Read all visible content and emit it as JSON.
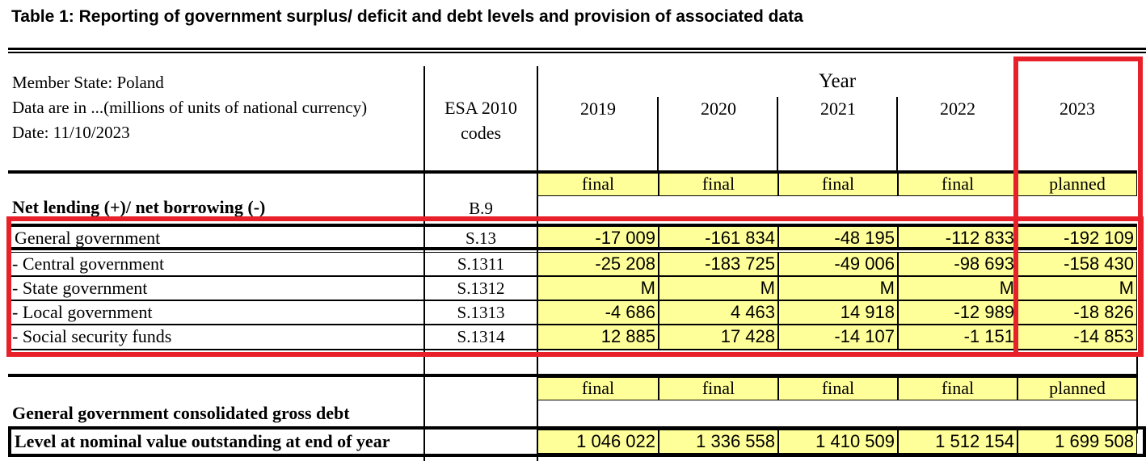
{
  "title": "Table 1: Reporting of government surplus/ deficit and debt levels and provision of associated data",
  "header": {
    "member_state": "Member State: Poland",
    "units": "Data are in ...(millions of units of national currency)",
    "date": "Date: 11/10/2023",
    "codes_line1": "ESA 2010",
    "codes_line2": "codes",
    "year_label": "Year",
    "years": [
      "2019",
      "2020",
      "2021",
      "2022",
      "2023"
    ]
  },
  "status": [
    "final",
    "final",
    "final",
    "final",
    "planned"
  ],
  "net_lending": {
    "label": "Net lending (+)/ net borrowing (-)",
    "code": "B.9",
    "rows": [
      {
        "label": "General government",
        "code": "S.13",
        "values": [
          "-17 009",
          "-161 834",
          "-48 195",
          "-112 833",
          "-192 109"
        ]
      },
      {
        "label": " - Central government",
        "code": "S.1311",
        "values": [
          "-25 208",
          "-183 725",
          "-49 006",
          "-98 693",
          "-158 430"
        ]
      },
      {
        "label": " - State government",
        "code": "S.1312",
        "values": [
          "M",
          "M",
          "M",
          "M",
          "M"
        ]
      },
      {
        "label": " - Local government",
        "code": "S.1313",
        "values": [
          "-4 686",
          "4 463",
          "14 918",
          "-12 989",
          "-18 826"
        ]
      },
      {
        "label": " - Social security funds",
        "code": "S.1314",
        "values": [
          "12 885",
          "17 428",
          "-14 107",
          "-1 151",
          "-14 853"
        ]
      }
    ]
  },
  "debt": {
    "status": [
      "final",
      "final",
      "final",
      "final",
      "planned"
    ],
    "label": "General government consolidated gross debt",
    "row": {
      "label": "Level at nominal value outstanding at end of year",
      "values": [
        "1 046 022",
        "1 336 558",
        "1 410 509",
        "1 512 154",
        "1 699 508"
      ]
    }
  },
  "colors": {
    "highlight": "#e8202a",
    "cell_fill": "#ffff99"
  }
}
